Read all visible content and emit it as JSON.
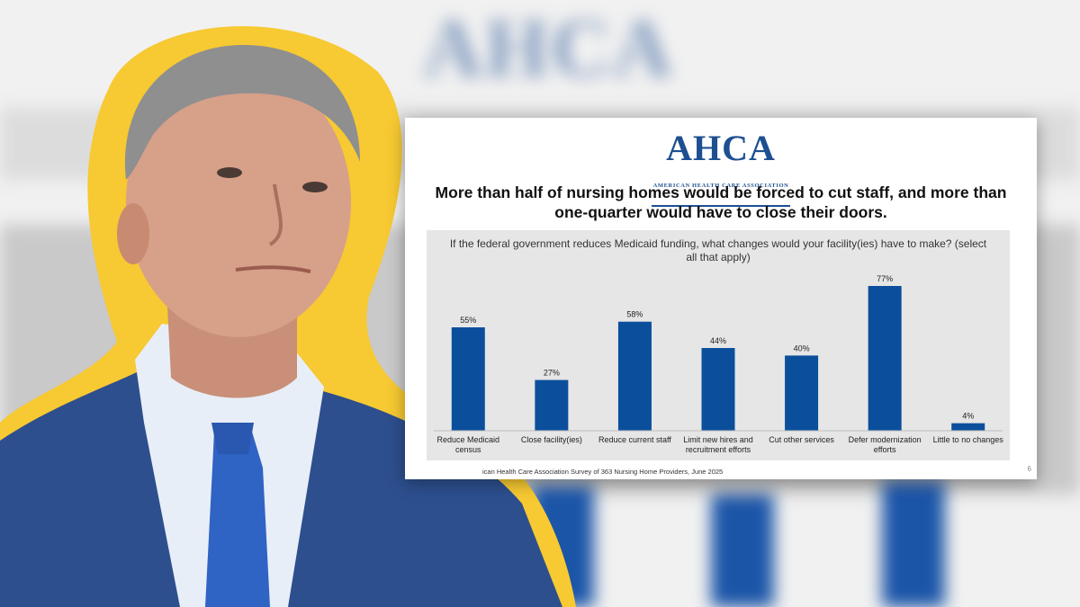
{
  "background": {
    "logo_text": "AHCA"
  },
  "person": {
    "outline_color": "#f7c932",
    "suit_color": "#2d4f8e",
    "tie_color": "#2f63c4"
  },
  "slide": {
    "logo": "AHCA",
    "logo_subtitle": "AMERICAN HEALTH CARE ASSOCIATION",
    "title": "More than half of nursing homes would be forced to cut staff, and more than one-quarter would have to close their doors.",
    "question": "If the federal government reduces Medicaid funding, what changes would your facility(ies) have to make? (select all that apply)",
    "footnote": "ican Health Care Association Survey of 363 Nursing Home Providers, June 2025",
    "page_number": "6",
    "colors": {
      "bar": "#0b4f9c",
      "panel": "#e6e6e6",
      "logo": "#1d4f91"
    }
  },
  "chart_data": {
    "type": "bar",
    "title": "If the federal government reduces Medicaid funding, what changes would your facility(ies) have to make? (select all that apply)",
    "categories": [
      [
        "Reduce Medicaid",
        "census"
      ],
      [
        "Close facility(ies)"
      ],
      [
        "Reduce current staff"
      ],
      [
        "Limit new hires and",
        "recruitment efforts"
      ],
      [
        "Cut other services"
      ],
      [
        "Defer modernization",
        "efforts"
      ],
      [
        "Little to no changes"
      ]
    ],
    "values": [
      55,
      27,
      58,
      44,
      40,
      77,
      4
    ],
    "value_labels": [
      "55%",
      "27%",
      "58%",
      "44%",
      "40%",
      "77%",
      "4%"
    ],
    "ylim": [
      0,
      80
    ],
    "grid": false,
    "legend": "none"
  }
}
